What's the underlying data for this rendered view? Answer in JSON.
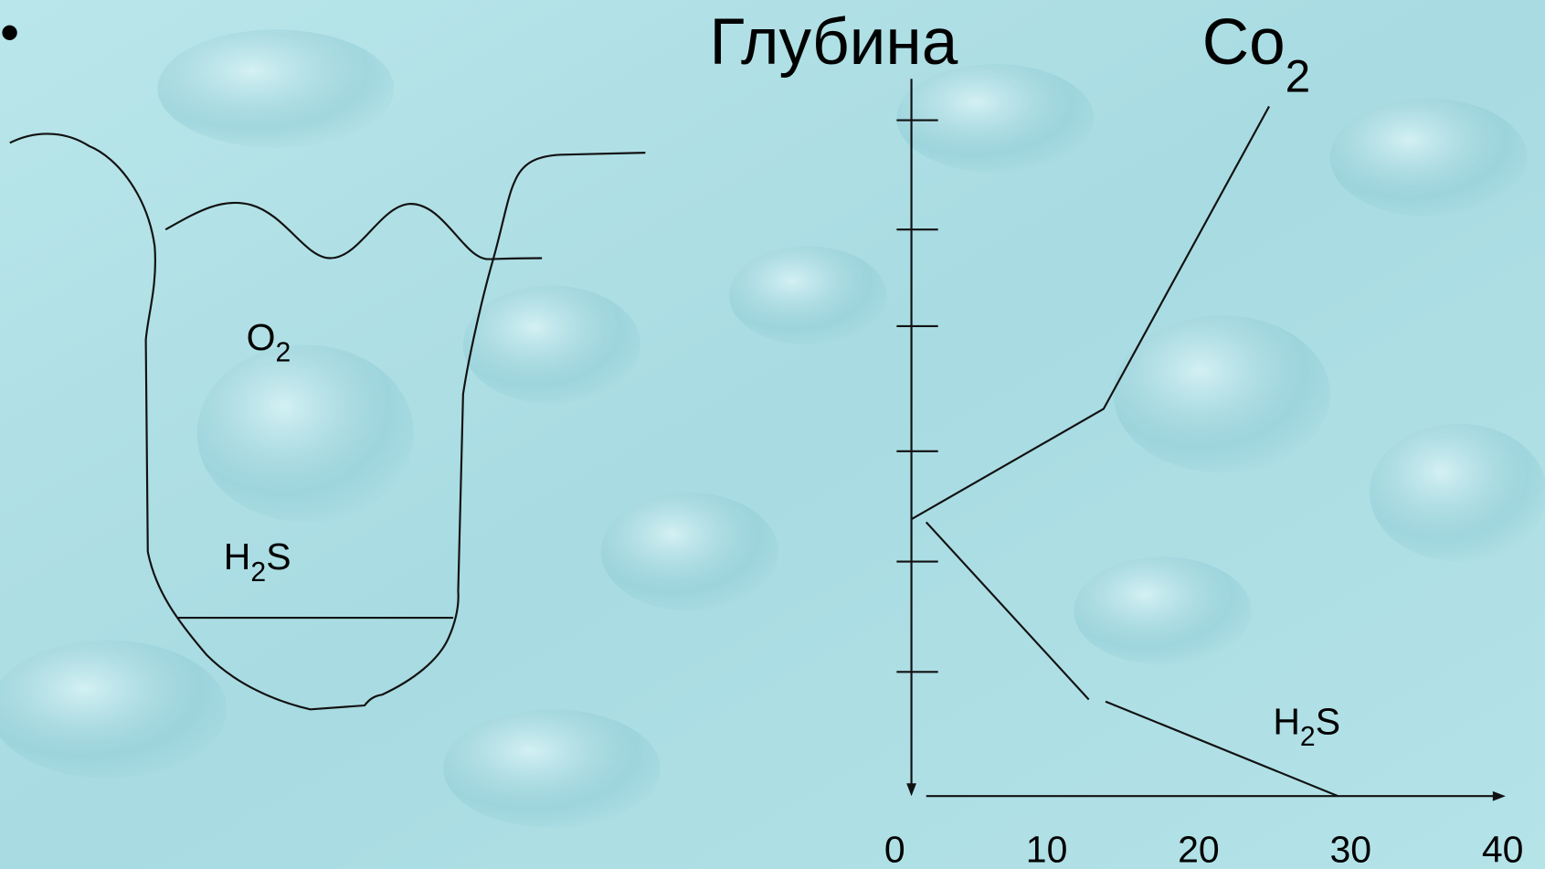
{
  "bullet": "•",
  "title": "Глубина",
  "co2_label": {
    "text": "Co",
    "sub": "2"
  },
  "vessel": {
    "o2_label": {
      "text": "O",
      "sub": "2"
    },
    "h2s_label": {
      "pre": "H",
      "sub": "2",
      "post": "S"
    }
  },
  "graph": {
    "h2s_label": {
      "pre": "H",
      "sub": "2",
      "post": "S"
    },
    "x_ticks": [
      0,
      10,
      20,
      30,
      40
    ]
  }
}
